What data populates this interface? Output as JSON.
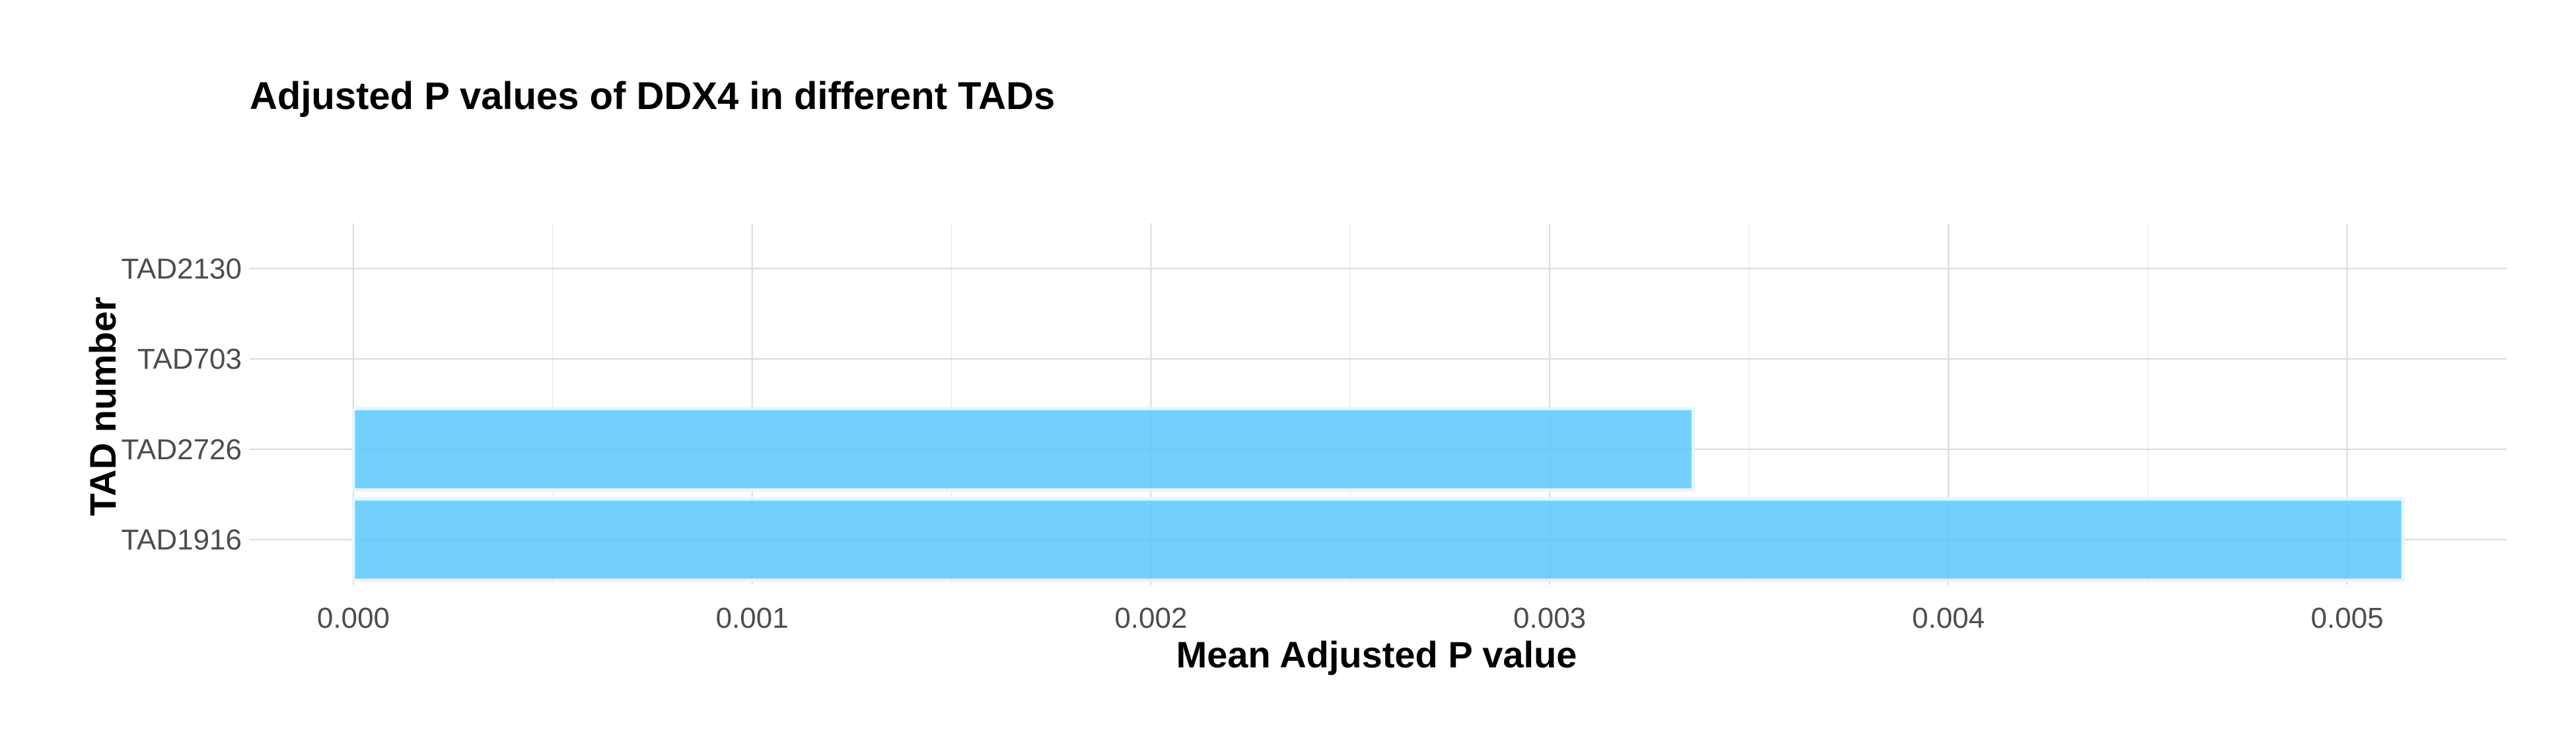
{
  "chart_data": {
    "type": "bar",
    "orientation": "horizontal",
    "title": "Adjusted P values of DDX4 in different TADs",
    "xlabel": "Mean Adjusted P value",
    "ylabel": "TAD number",
    "categories": [
      "TAD2130",
      "TAD703",
      "TAD2726",
      "TAD1916"
    ],
    "values": [
      0.0,
      0.0,
      0.00336,
      0.00514
    ],
    "xlim": [
      -0.00026,
      0.0054
    ],
    "xticks": [
      0.0,
      0.001,
      0.002,
      0.003,
      0.004,
      0.005
    ],
    "xtick_labels": [
      "0.000",
      "0.001",
      "0.002",
      "0.003",
      "0.004",
      "0.005"
    ],
    "grid": true,
    "legend": "none",
    "bar_color": "#5bc8fb"
  }
}
